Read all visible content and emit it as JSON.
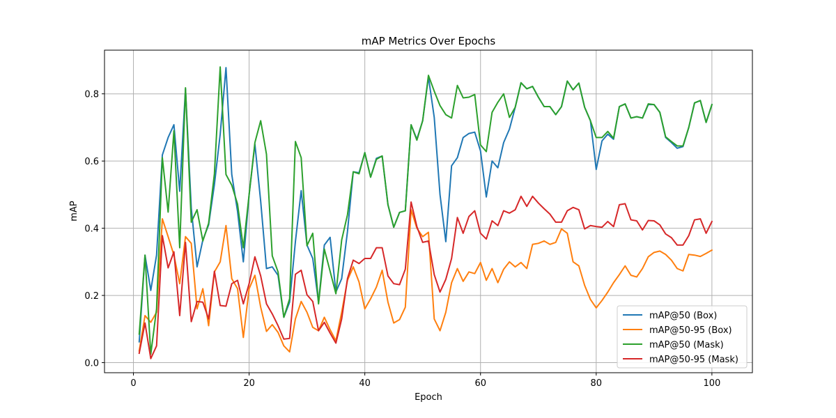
{
  "chart_data": {
    "type": "line",
    "title": "mAP Metrics Over Epochs",
    "xlabel": "Epoch",
    "ylabel": "mAP",
    "xlim": [
      -5,
      107
    ],
    "ylim": [
      -0.03,
      0.93
    ],
    "xticks": [
      0,
      20,
      40,
      60,
      80,
      100
    ],
    "yticks": [
      0.0,
      0.2,
      0.4,
      0.6,
      0.8
    ],
    "ytick_labels": [
      "0.0",
      "0.2",
      "0.4",
      "0.6",
      "0.8"
    ],
    "grid": true,
    "legend_position": "lower-right",
    "x": [
      1,
      2,
      3,
      4,
      5,
      6,
      7,
      8,
      9,
      10,
      11,
      12,
      13,
      14,
      15,
      16,
      17,
      18,
      19,
      20,
      21,
      22,
      23,
      24,
      25,
      26,
      27,
      28,
      29,
      30,
      31,
      32,
      33,
      34,
      35,
      36,
      37,
      38,
      39,
      40,
      41,
      42,
      43,
      44,
      45,
      46,
      47,
      48,
      49,
      50,
      51,
      52,
      53,
      54,
      55,
      56,
      57,
      58,
      59,
      60,
      61,
      62,
      63,
      64,
      65,
      66,
      67,
      68,
      69,
      70,
      71,
      72,
      73,
      74,
      75,
      76,
      77,
      78,
      79,
      80,
      81,
      82,
      83,
      84,
      85,
      86,
      87,
      88,
      89,
      90,
      91,
      92,
      93,
      94,
      95,
      96,
      97,
      98,
      99,
      100
    ],
    "series": [
      {
        "name": "mAP@50 (Box)",
        "color": "#1f77b4",
        "values": [
          0.062,
          0.32,
          0.215,
          0.32,
          0.618,
          0.67,
          0.708,
          0.51,
          0.815,
          0.46,
          0.285,
          0.365,
          0.41,
          0.53,
          0.68,
          0.878,
          0.56,
          0.45,
          0.3,
          0.5,
          0.65,
          0.48,
          0.28,
          0.285,
          0.26,
          0.135,
          0.18,
          0.36,
          0.512,
          0.35,
          0.31,
          0.18,
          0.35,
          0.373,
          0.21,
          0.25,
          0.39,
          0.568,
          0.565,
          0.625,
          0.552,
          0.608,
          0.615,
          0.47,
          0.403,
          0.447,
          0.452,
          0.708,
          0.665,
          0.72,
          0.85,
          0.73,
          0.5,
          0.36,
          0.586,
          0.61,
          0.67,
          0.682,
          0.686,
          0.63,
          0.493,
          0.6,
          0.58,
          0.655,
          0.695,
          0.76,
          0.833,
          0.815,
          0.822,
          0.79,
          0.762,
          0.762,
          0.738,
          0.762,
          0.838,
          0.812,
          0.832,
          0.76,
          0.72,
          0.575,
          0.66,
          0.68,
          0.665,
          0.762,
          0.77,
          0.728,
          0.732,
          0.728,
          0.768,
          0.768,
          0.745,
          0.67,
          0.655,
          0.638,
          0.643,
          0.7,
          0.773,
          0.78,
          0.715,
          0.768
        ]
      },
      {
        "name": "mAP@50-95 (Box)",
        "color": "#ff7f0e",
        "values": [
          0.035,
          0.14,
          0.12,
          0.15,
          0.428,
          0.375,
          0.32,
          0.235,
          0.375,
          0.355,
          0.16,
          0.22,
          0.11,
          0.27,
          0.3,
          0.408,
          0.25,
          0.22,
          0.075,
          0.22,
          0.26,
          0.165,
          0.093,
          0.113,
          0.09,
          0.05,
          0.032,
          0.13,
          0.182,
          0.15,
          0.105,
          0.095,
          0.135,
          0.098,
          0.065,
          0.15,
          0.245,
          0.285,
          0.24,
          0.16,
          0.19,
          0.225,
          0.275,
          0.18,
          0.118,
          0.128,
          0.165,
          0.455,
          0.4,
          0.375,
          0.388,
          0.13,
          0.095,
          0.15,
          0.238,
          0.28,
          0.242,
          0.27,
          0.265,
          0.298,
          0.245,
          0.28,
          0.238,
          0.278,
          0.3,
          0.285,
          0.298,
          0.28,
          0.352,
          0.355,
          0.362,
          0.352,
          0.358,
          0.398,
          0.385,
          0.3,
          0.288,
          0.23,
          0.188,
          0.163,
          0.185,
          0.21,
          0.238,
          0.262,
          0.288,
          0.26,
          0.255,
          0.28,
          0.315,
          0.328,
          0.332,
          0.322,
          0.305,
          0.28,
          0.273,
          0.322,
          0.32,
          0.316,
          0.325,
          0.335
        ]
      },
      {
        "name": "mAP@50 (Mask)",
        "color": "#2ca02c",
        "values": [
          0.085,
          0.32,
          0.025,
          0.16,
          0.61,
          0.448,
          0.69,
          0.342,
          0.818,
          0.418,
          0.455,
          0.362,
          0.415,
          0.562,
          0.88,
          0.56,
          0.528,
          0.472,
          0.342,
          0.5,
          0.655,
          0.72,
          0.62,
          0.318,
          0.27,
          0.135,
          0.19,
          0.658,
          0.61,
          0.348,
          0.385,
          0.175,
          0.338,
          0.272,
          0.205,
          0.365,
          0.44,
          0.568,
          0.562,
          0.625,
          0.552,
          0.605,
          0.615,
          0.47,
          0.403,
          0.447,
          0.452,
          0.708,
          0.662,
          0.72,
          0.855,
          0.808,
          0.765,
          0.738,
          0.728,
          0.825,
          0.788,
          0.79,
          0.798,
          0.648,
          0.628,
          0.745,
          0.775,
          0.8,
          0.73,
          0.76,
          0.833,
          0.815,
          0.822,
          0.79,
          0.762,
          0.762,
          0.738,
          0.762,
          0.838,
          0.812,
          0.832,
          0.76,
          0.72,
          0.67,
          0.67,
          0.688,
          0.668,
          0.762,
          0.77,
          0.728,
          0.732,
          0.728,
          0.77,
          0.768,
          0.745,
          0.672,
          0.658,
          0.645,
          0.645,
          0.7,
          0.773,
          0.78,
          0.715,
          0.768
        ]
      },
      {
        "name": "mAP@50-95 (Mask)",
        "color": "#d62728",
        "values": [
          0.028,
          0.118,
          0.012,
          0.05,
          0.378,
          0.282,
          0.33,
          0.14,
          0.358,
          0.122,
          0.182,
          0.18,
          0.13,
          0.272,
          0.17,
          0.168,
          0.235,
          0.245,
          0.175,
          0.235,
          0.315,
          0.258,
          0.175,
          0.145,
          0.11,
          0.07,
          0.072,
          0.263,
          0.275,
          0.202,
          0.182,
          0.095,
          0.12,
          0.088,
          0.058,
          0.13,
          0.25,
          0.305,
          0.295,
          0.31,
          0.31,
          0.342,
          0.342,
          0.258,
          0.235,
          0.232,
          0.278,
          0.478,
          0.405,
          0.358,
          0.362,
          0.262,
          0.21,
          0.248,
          0.31,
          0.432,
          0.385,
          0.435,
          0.452,
          0.385,
          0.368,
          0.422,
          0.408,
          0.452,
          0.445,
          0.455,
          0.495,
          0.465,
          0.495,
          0.475,
          0.458,
          0.442,
          0.418,
          0.418,
          0.452,
          0.462,
          0.455,
          0.398,
          0.408,
          0.405,
          0.403,
          0.42,
          0.405,
          0.47,
          0.473,
          0.425,
          0.422,
          0.395,
          0.423,
          0.422,
          0.41,
          0.383,
          0.372,
          0.35,
          0.35,
          0.378,
          0.425,
          0.428,
          0.385,
          0.42
        ]
      }
    ]
  }
}
